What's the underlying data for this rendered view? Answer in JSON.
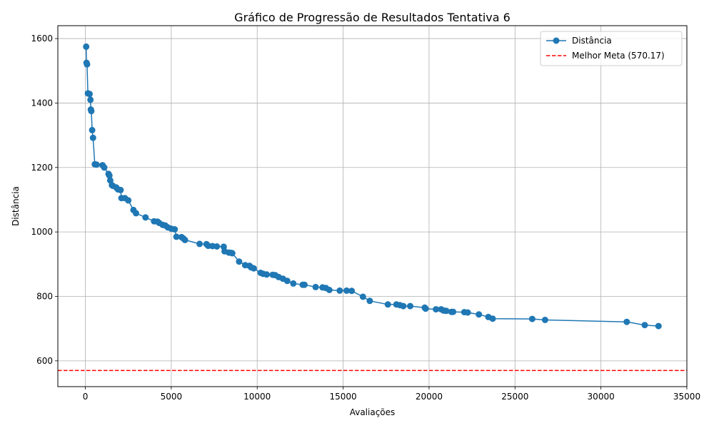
{
  "chart_data": {
    "type": "line",
    "title": "Gráfico de Progressão de Resultados Tentativa 6",
    "xlabel": "Avaliações",
    "ylabel": "Distância",
    "xlim": [
      -1600,
      35000
    ],
    "ylim": [
      520,
      1640
    ],
    "xticks": [
      0,
      5000,
      10000,
      15000,
      20000,
      25000,
      30000,
      35000
    ],
    "yticks": [
      600,
      800,
      1000,
      1200,
      1400,
      1600
    ],
    "grid": true,
    "legend_position": "top-right",
    "series": [
      {
        "name": "Distância",
        "color": "#1f77b4",
        "marker": "circle",
        "x": [
          50,
          70,
          100,
          150,
          250,
          300,
          320,
          350,
          400,
          450,
          550,
          650,
          1000,
          1100,
          1350,
          1400,
          1450,
          1550,
          1600,
          1800,
          1900,
          2050,
          2100,
          2300,
          2500,
          2800,
          2950,
          3500,
          4000,
          4200,
          4300,
          4500,
          4650,
          4800,
          5000,
          5200,
          5300,
          5600,
          5700,
          5800,
          6650,
          7050,
          7150,
          7400,
          7650,
          8050,
          8100,
          8350,
          8500,
          8550,
          8950,
          9300,
          9550,
          9650,
          9800,
          10200,
          10350,
          10550,
          10900,
          11050,
          11250,
          11500,
          11750,
          12100,
          12650,
          12750,
          13400,
          13800,
          14000,
          14200,
          14800,
          15200,
          15500,
          16150,
          16550,
          17600,
          18100,
          18300,
          18500,
          18900,
          19750,
          19800,
          20400,
          20700,
          20850,
          21000,
          21300,
          21400,
          22050,
          22250,
          22900,
          23450,
          23700,
          26000,
          26750,
          31500,
          32550,
          33350
        ],
        "values": [
          1575,
          1525,
          1520,
          1430,
          1428,
          1410,
          1380,
          1375,
          1316,
          1292,
          1210,
          1209,
          1207,
          1200,
          1180,
          1175,
          1160,
          1145,
          1143,
          1138,
          1132,
          1130,
          1105,
          1105,
          1098,
          1068,
          1058,
          1045,
          1033,
          1032,
          1028,
          1022,
          1020,
          1014,
          1010,
          1008,
          985,
          984,
          980,
          975,
          963,
          962,
          957,
          956,
          955,
          954,
          940,
          936,
          935,
          934,
          908,
          897,
          895,
          890,
          887,
          873,
          870,
          868,
          867,
          866,
          860,
          855,
          848,
          840,
          836,
          836,
          829,
          828,
          826,
          820,
          818,
          818,
          817,
          799,
          786,
          775,
          775,
          773,
          770,
          770,
          765,
          762,
          760,
          760,
          756,
          755,
          752,
          752,
          751,
          750,
          744,
          736,
          731,
          730,
          727,
          721,
          711,
          708
        ]
      },
      {
        "name": "Melhor Meta (570.17)",
        "color": "#ff0000",
        "style": "dashed",
        "constant": 570.17
      }
    ]
  }
}
